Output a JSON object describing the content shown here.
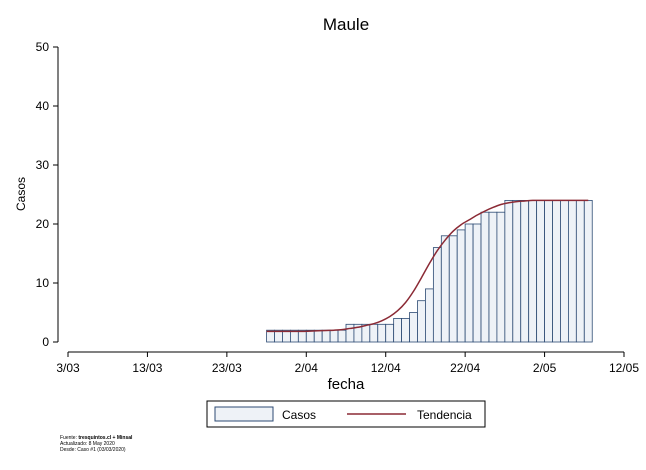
{
  "chart_data": {
    "type": "bar",
    "title": "Maule",
    "xlabel": "fecha",
    "ylabel": "Casos",
    "ylim": [
      0,
      50
    ],
    "yticks": [
      0,
      10,
      20,
      30,
      40,
      50
    ],
    "xlim": [
      "2020-03-03",
      "2020-05-12"
    ],
    "xticks": [
      {
        "date": "2020-03-03",
        "label": "3/03"
      },
      {
        "date": "2020-03-13",
        "label": "13/03"
      },
      {
        "date": "2020-03-23",
        "label": "23/03"
      },
      {
        "date": "2020-04-02",
        "label": "2/04"
      },
      {
        "date": "2020-04-12",
        "label": "12/04"
      },
      {
        "date": "2020-04-22",
        "label": "22/04"
      },
      {
        "date": "2020-05-02",
        "label": "2/05"
      },
      {
        "date": "2020-05-12",
        "label": "12/05"
      }
    ],
    "grid": false,
    "legend": {
      "position": "bottom",
      "entries": [
        "Casos",
        "Tendencia"
      ]
    },
    "x": [
      "2020-03-28",
      "2020-03-29",
      "2020-03-30",
      "2020-03-31",
      "2020-04-01",
      "2020-04-02",
      "2020-04-03",
      "2020-04-04",
      "2020-04-05",
      "2020-04-06",
      "2020-04-07",
      "2020-04-08",
      "2020-04-09",
      "2020-04-10",
      "2020-04-11",
      "2020-04-12",
      "2020-04-13",
      "2020-04-14",
      "2020-04-15",
      "2020-04-16",
      "2020-04-17",
      "2020-04-18",
      "2020-04-19",
      "2020-04-20",
      "2020-04-21",
      "2020-04-22",
      "2020-04-23",
      "2020-04-24",
      "2020-04-25",
      "2020-04-26",
      "2020-04-27",
      "2020-04-28",
      "2020-04-29",
      "2020-04-30",
      "2020-05-01",
      "2020-05-02",
      "2020-05-03",
      "2020-05-04",
      "2020-05-05",
      "2020-05-06",
      "2020-05-07"
    ],
    "series": [
      {
        "name": "Casos",
        "type": "bar",
        "values": [
          2,
          2,
          2,
          2,
          2,
          2,
          2,
          2,
          2,
          2,
          3,
          3,
          3,
          3,
          3,
          3,
          4,
          4,
          5,
          7,
          9,
          16,
          18,
          18,
          19,
          20,
          20,
          22,
          22,
          22,
          24,
          24,
          24,
          24,
          24,
          24,
          24,
          24,
          24,
          24,
          24
        ]
      },
      {
        "name": "Tendencia",
        "type": "line",
        "values": [
          1.8,
          1.8,
          1.8,
          1.8,
          1.8,
          1.85,
          1.9,
          1.95,
          2.0,
          2.1,
          2.3,
          2.5,
          2.8,
          3.1,
          3.6,
          4.3,
          5.3,
          6.7,
          8.6,
          10.9,
          13.3,
          15.5,
          17.3,
          18.8,
          19.9,
          20.7,
          21.5,
          22.2,
          22.8,
          23.3,
          23.6,
          23.8,
          23.9,
          24,
          24,
          24,
          24,
          24,
          24,
          24,
          24
        ]
      }
    ],
    "colors": {
      "bar_fill": "#eef2f7",
      "bar_stroke": "#2c4a73",
      "line": "#8b2a35"
    }
  },
  "source": {
    "line1_prefix": "Fuente: ",
    "line1_bold": "tresquintos.cl + Minsal",
    "line2": "Actualizado: 8 May 2020",
    "line3": "Desde: Caso #1  (03/03/2020)"
  }
}
